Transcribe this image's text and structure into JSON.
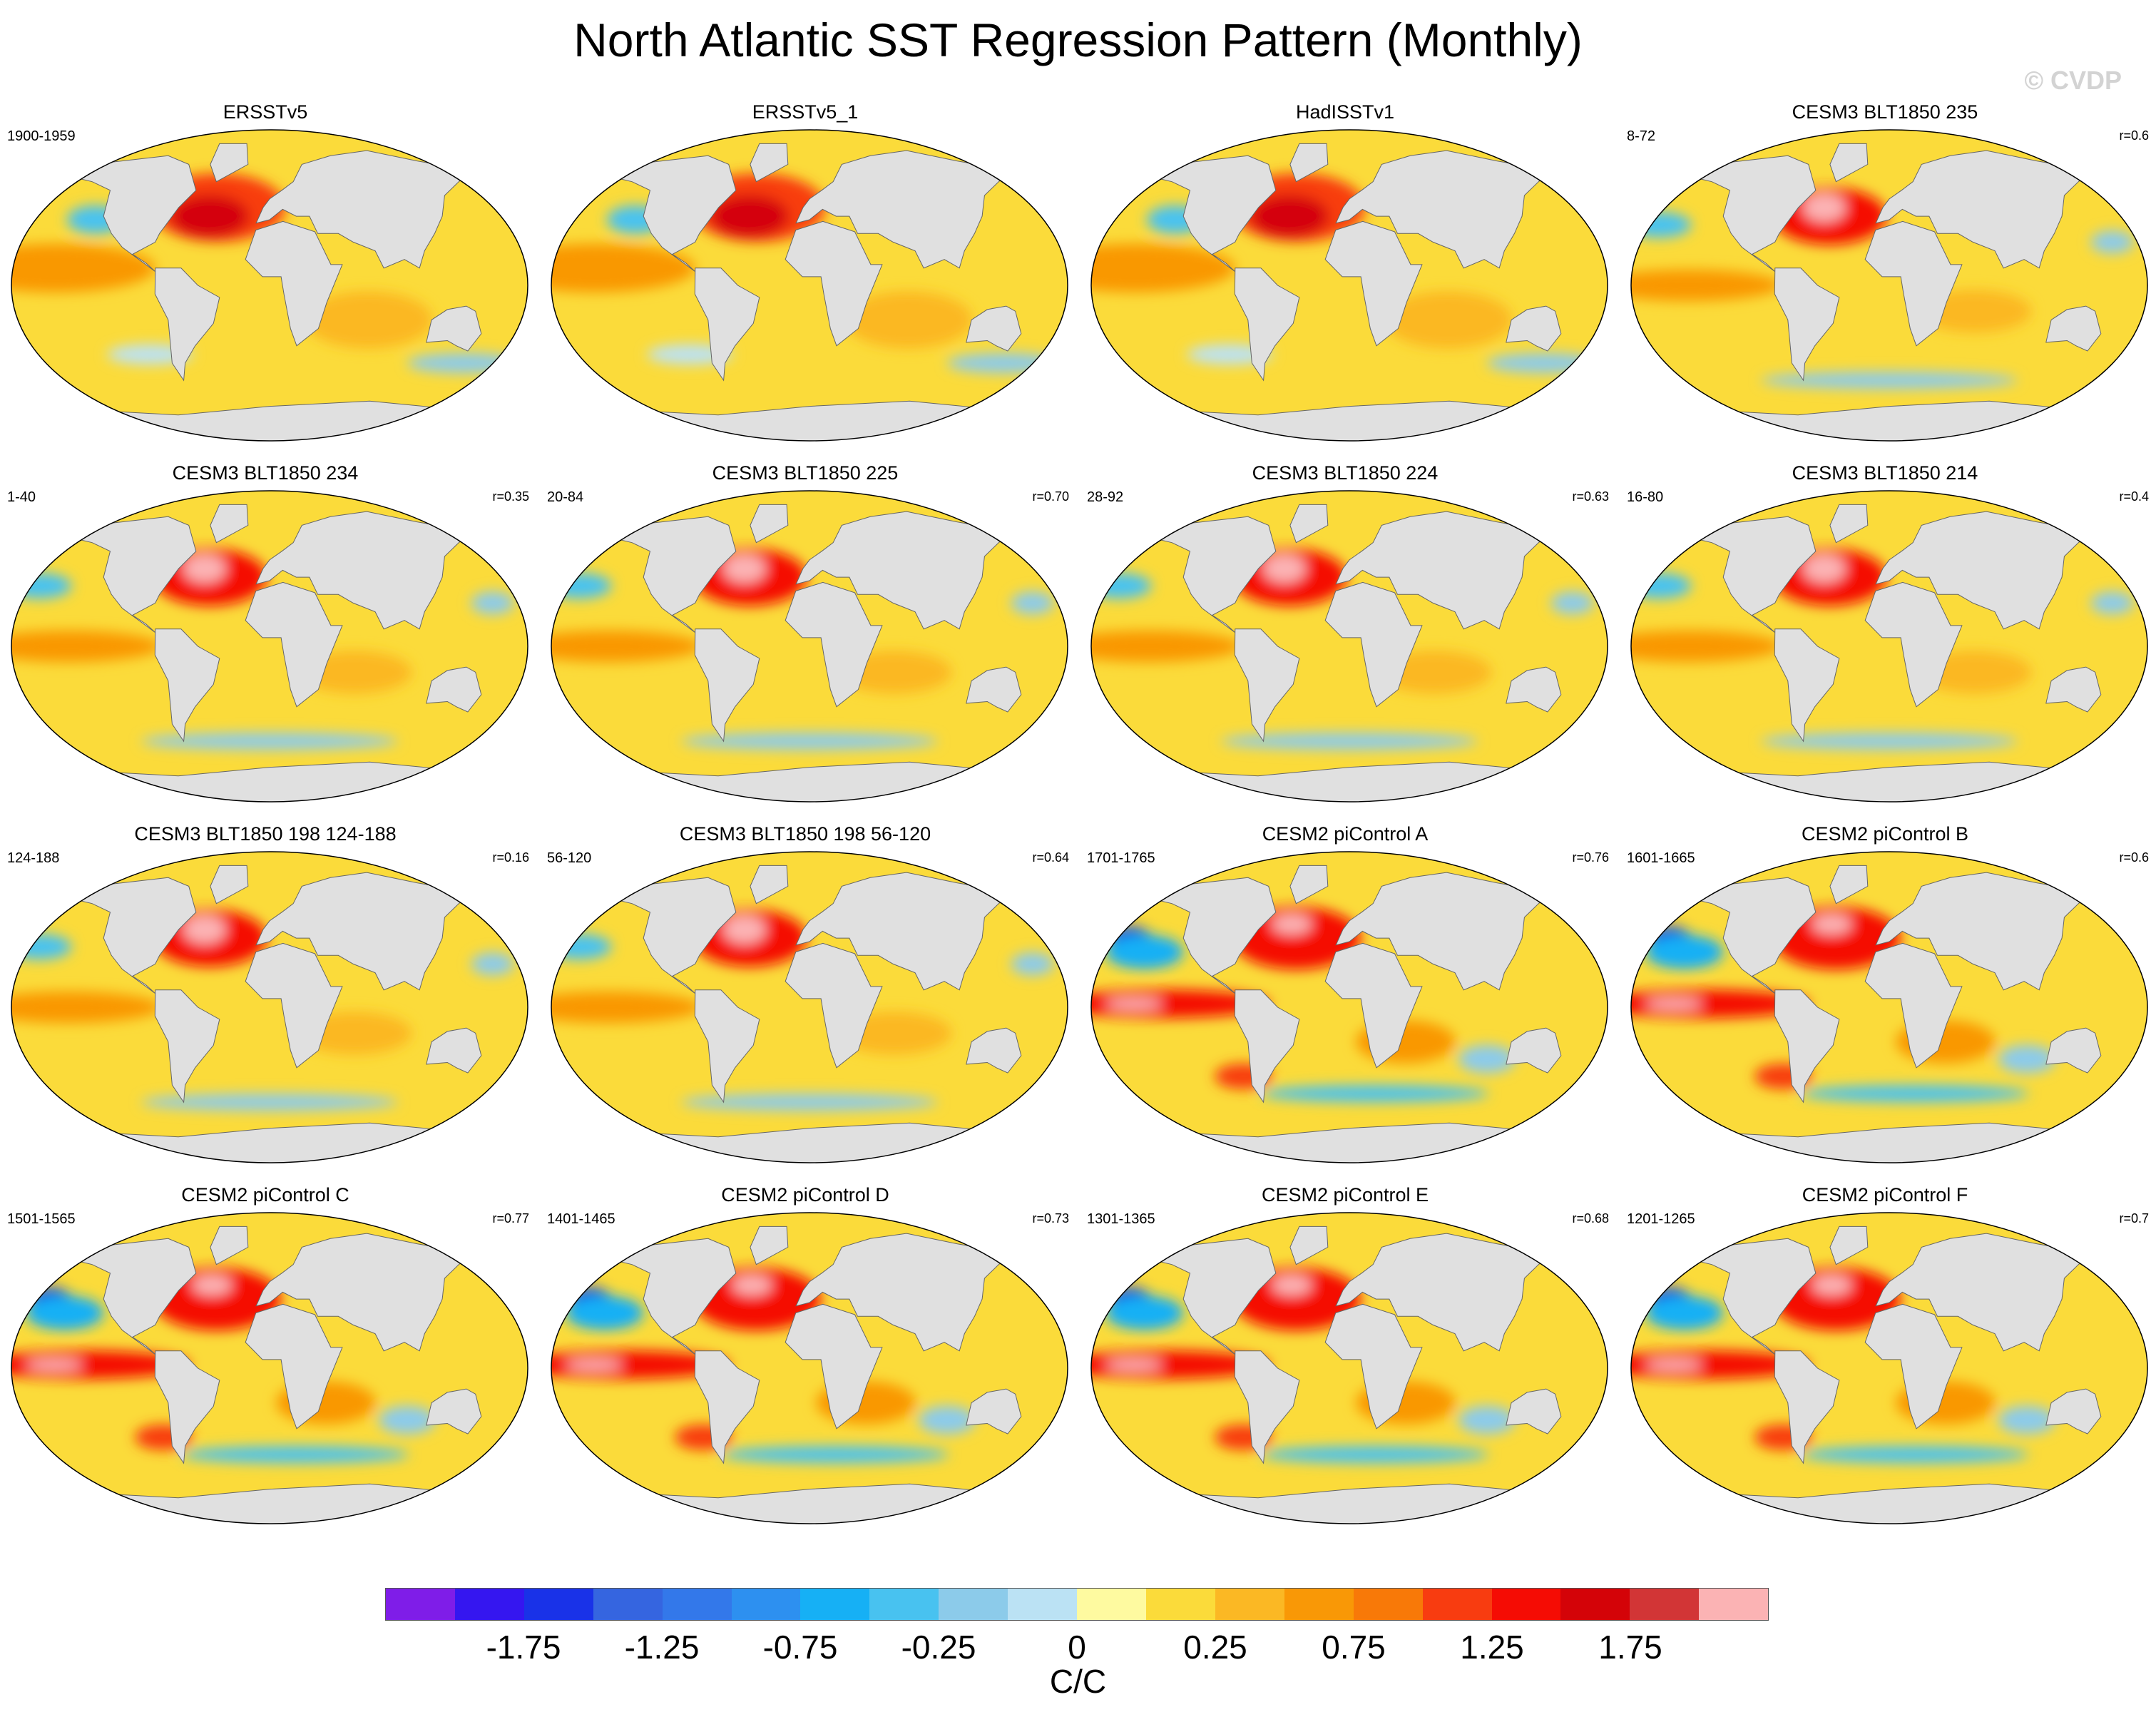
{
  "title": "North Atlantic SST Regression Pattern (Monthly)",
  "watermark": "© CVDP",
  "chart_data": {
    "type": "heatmap",
    "projection": "Robinson (global ocean map)",
    "land_color": "#e0e0e0",
    "panels": [
      {
        "title": "ERSSTv5",
        "years": "1900-1959",
        "r": "",
        "pattern": "obs"
      },
      {
        "title": "ERSSTv5_1",
        "years": "",
        "r": "",
        "pattern": "obs"
      },
      {
        "title": "HadISSTv1",
        "years": "",
        "r": "",
        "pattern": "obs"
      },
      {
        "title": "CESM3 BLT1850 235",
        "years": "8-72",
        "r": "r=0.6",
        "pattern": "cesm3"
      },
      {
        "title": "CESM3 BLT1850 234",
        "years": "1-40",
        "r": "r=0.35",
        "pattern": "cesm3"
      },
      {
        "title": "CESM3 BLT1850 225",
        "years": "20-84",
        "r": "r=0.70",
        "pattern": "cesm3"
      },
      {
        "title": "CESM3 BLT1850 224",
        "years": "28-92",
        "r": "r=0.63",
        "pattern": "cesm3"
      },
      {
        "title": "CESM3 BLT1850 214",
        "years": "16-80",
        "r": "r=0.4",
        "pattern": "cesm3"
      },
      {
        "title": "CESM3 BLT1850 198 124-188",
        "years": "124-188",
        "r": "r=0.16",
        "pattern": "cesm3"
      },
      {
        "title": "CESM3 BLT1850 198 56-120",
        "years": "56-120",
        "r": "r=0.64",
        "pattern": "cesm3"
      },
      {
        "title": "CESM2 piControl A",
        "years": "1701-1765",
        "r": "r=0.76",
        "pattern": "cesm2"
      },
      {
        "title": "CESM2 piControl B",
        "years": "1601-1665",
        "r": "r=0.6",
        "pattern": "cesm2"
      },
      {
        "title": "CESM2 piControl C",
        "years": "1501-1565",
        "r": "r=0.77",
        "pattern": "cesm2"
      },
      {
        "title": "CESM2 piControl D",
        "years": "1401-1465",
        "r": "r=0.73",
        "pattern": "cesm2"
      },
      {
        "title": "CESM2 piControl E",
        "years": "1301-1365",
        "r": "r=0.68",
        "pattern": "cesm2"
      },
      {
        "title": "CESM2 piControl F",
        "years": "1201-1265",
        "r": "r=0.7",
        "pattern": "cesm2"
      }
    ],
    "colorbar": {
      "units": "C/C",
      "tick_labels": [
        "-1.75",
        "-1.25",
        "-0.75",
        "-0.25",
        "0",
        "0.25",
        "0.75",
        "1.25",
        "1.75"
      ],
      "tick_values": [
        -1.75,
        -1.25,
        -0.75,
        -0.25,
        0,
        0.25,
        0.75,
        1.25,
        1.75
      ],
      "levels": [
        -2,
        -1.75,
        -1.5,
        -1.25,
        -1,
        -0.75,
        -0.5,
        -0.25,
        -0.1,
        0,
        0.1,
        0.25,
        0.5,
        0.75,
        1,
        1.25,
        1.5,
        1.75,
        2
      ],
      "colors": [
        "#7f1de8",
        "#3516f0",
        "#1932e8",
        "#3565e0",
        "#3378ea",
        "#2d90f0",
        "#16b0f5",
        "#48c2f0",
        "#8ccbea",
        "#bbe2f4",
        "#fefaa0",
        "#fbdb3a",
        "#fbb824",
        "#f99806",
        "#f87908",
        "#f83c10",
        "#f50c04",
        "#d40308",
        "#d23536",
        "#fbb3b4"
      ]
    }
  }
}
